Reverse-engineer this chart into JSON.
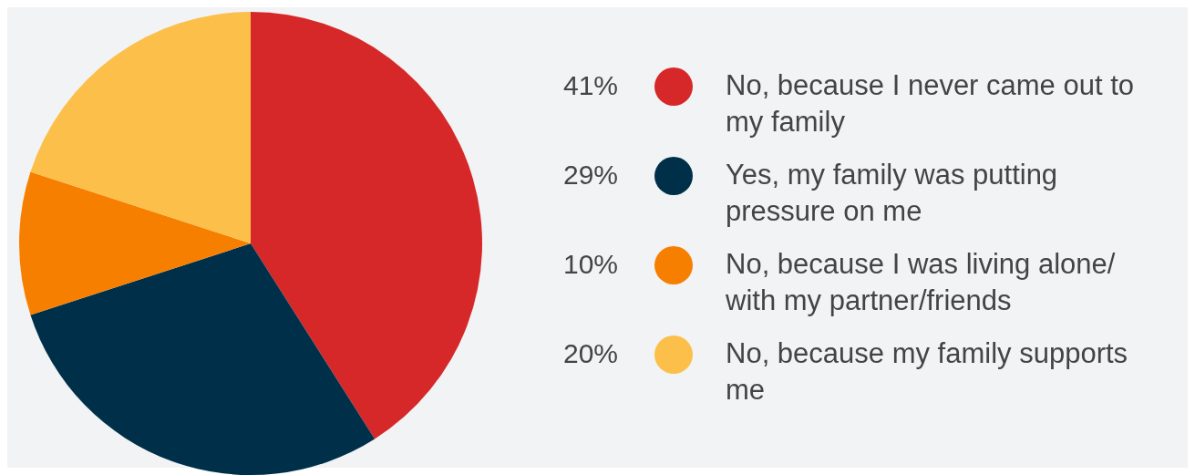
{
  "chart_data": {
    "type": "pie",
    "categories": [
      "No, because I never came out to my family",
      "Yes, my family was putting pressure on me",
      "No, because I was living alone/ with my partner/friends",
      "No, because my family supports me"
    ],
    "values": [
      41,
      29,
      10,
      20
    ],
    "value_labels": [
      "41%",
      "29%",
      "10%",
      "20%"
    ],
    "colors": [
      "#d62828",
      "#003049",
      "#f77f00",
      "#fcbf49"
    ],
    "legend": "right"
  }
}
